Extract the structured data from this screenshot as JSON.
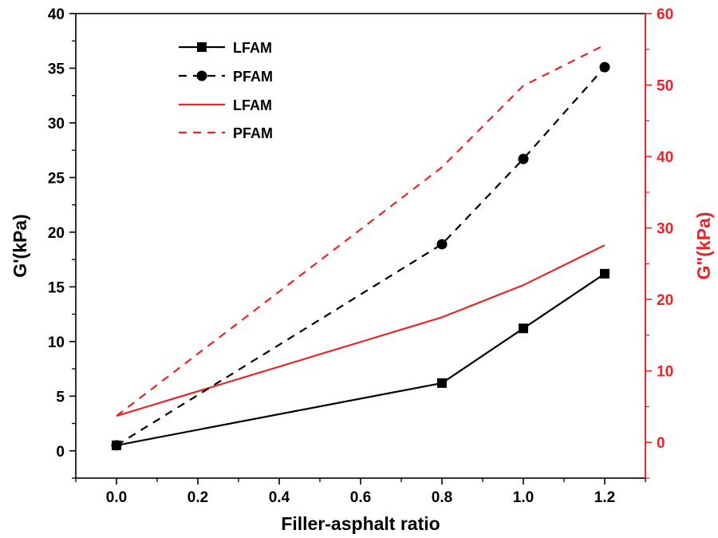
{
  "chart_data": {
    "type": "line",
    "title": "",
    "xlabel": "Filler-asphalt ratio",
    "ylabel_left": "G'(kPa)",
    "ylabel_right": "G\"(kPa)",
    "xlim": [
      -0.1,
      1.3
    ],
    "ylim_left": [
      -2.5,
      40
    ],
    "ylim_right": [
      -5,
      60
    ],
    "x_ticks": [
      0.0,
      0.2,
      0.4,
      0.6,
      0.8,
      1.0,
      1.2
    ],
    "x_tick_labels": [
      "0.0",
      "0.2",
      "0.4",
      "0.6",
      "0.8",
      "1.0",
      "1.2"
    ],
    "y_left_ticks": [
      0,
      5,
      10,
      15,
      20,
      25,
      30,
      35,
      40
    ],
    "y_left_tick_labels": [
      "0",
      "5",
      "10",
      "15",
      "20",
      "25",
      "30",
      "35",
      "40"
    ],
    "y_right_ticks": [
      0,
      10,
      20,
      30,
      40,
      50,
      60
    ],
    "y_right_tick_labels": [
      "0",
      "10",
      "20",
      "30",
      "40",
      "50",
      "60"
    ],
    "x": [
      0.0,
      0.8,
      1.0,
      1.2
    ],
    "series": [
      {
        "name": "LFAM",
        "axis": "left",
        "values": [
          0.5,
          6.2,
          11.2,
          16.2
        ],
        "color": "#000000",
        "dash": "solid",
        "marker": "square"
      },
      {
        "name": "PFAM",
        "axis": "left",
        "values": [
          0.5,
          18.9,
          26.7,
          35.1
        ],
        "color": "#000000",
        "dash": "dashed",
        "marker": "circle"
      },
      {
        "name": "LFAM",
        "axis": "right",
        "values": [
          3.7,
          17.5,
          22.0,
          27.6
        ],
        "color": "#e8242b",
        "dash": "solid",
        "marker": "none"
      },
      {
        "name": "PFAM",
        "axis": "right",
        "values": [
          3.7,
          38.5,
          49.9,
          55.6
        ],
        "color": "#e8242b",
        "dash": "dashed",
        "marker": "none"
      }
    ],
    "legend_position": "top-left",
    "axis_color_left": "#000000",
    "axis_color_right": "#e8242b",
    "grid": false
  }
}
